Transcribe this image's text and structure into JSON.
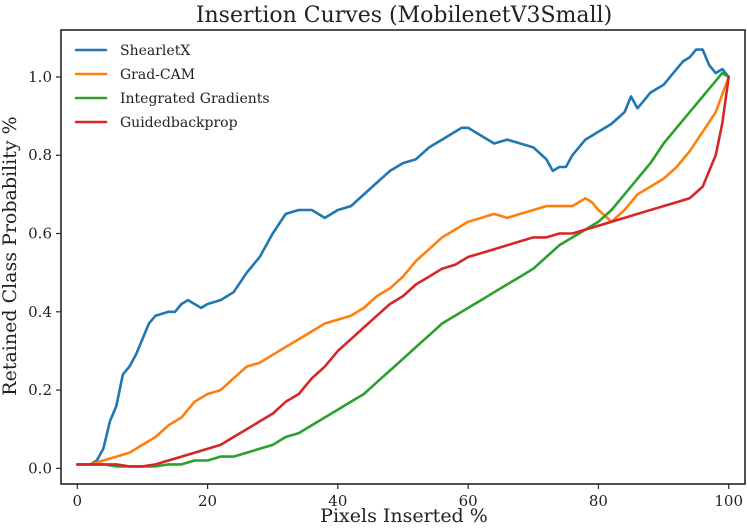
{
  "chart_data": {
    "type": "line",
    "title": "Insertion Curves (MobilenetV3Small)",
    "xlabel": "Pixels Inserted %",
    "ylabel": "Retained Class Probability %",
    "xlim": [
      -2.5,
      102.5
    ],
    "ylim": [
      -0.04,
      1.12
    ],
    "x_ticks": [
      0,
      20,
      40,
      60,
      80,
      100
    ],
    "x_tick_labels": [
      "0",
      "20",
      "40",
      "60",
      "80",
      "100"
    ],
    "y_ticks": [
      0.0,
      0.2,
      0.4,
      0.6,
      0.8,
      1.0
    ],
    "y_tick_labels": [
      "0.0",
      "0.2",
      "0.4",
      "0.6",
      "0.8",
      "1.0"
    ],
    "grid": false,
    "legend_position": "top-left",
    "series": [
      {
        "name": "ShearletX",
        "color": "#1f77b4",
        "x": [
          0,
          2,
          3,
          4,
          5,
          6,
          7,
          8,
          9,
          10,
          11,
          12,
          14,
          15,
          16,
          17,
          18,
          19,
          20,
          22,
          24,
          26,
          28,
          30,
          32,
          34,
          36,
          38,
          40,
          42,
          44,
          46,
          48,
          50,
          52,
          54,
          56,
          58,
          59,
          60,
          62,
          64,
          66,
          68,
          70,
          72,
          73,
          74,
          75,
          76,
          78,
          80,
          82,
          84,
          85,
          86,
          87,
          88,
          90,
          92,
          93,
          94,
          95,
          96,
          97,
          98,
          99,
          100
        ],
        "y": [
          0.01,
          0.01,
          0.02,
          0.05,
          0.12,
          0.16,
          0.24,
          0.26,
          0.29,
          0.33,
          0.37,
          0.39,
          0.4,
          0.4,
          0.42,
          0.43,
          0.42,
          0.41,
          0.42,
          0.43,
          0.45,
          0.5,
          0.54,
          0.6,
          0.65,
          0.66,
          0.66,
          0.64,
          0.66,
          0.67,
          0.7,
          0.73,
          0.76,
          0.78,
          0.79,
          0.82,
          0.84,
          0.86,
          0.87,
          0.87,
          0.85,
          0.83,
          0.84,
          0.83,
          0.82,
          0.79,
          0.76,
          0.77,
          0.77,
          0.8,
          0.84,
          0.86,
          0.88,
          0.91,
          0.95,
          0.92,
          0.94,
          0.96,
          0.98,
          1.02,
          1.04,
          1.05,
          1.07,
          1.07,
          1.03,
          1.01,
          1.02,
          1.0
        ]
      },
      {
        "name": "Grad-CAM",
        "color": "#ff7f0e",
        "x": [
          0,
          2,
          4,
          6,
          8,
          10,
          12,
          14,
          16,
          18,
          20,
          22,
          24,
          26,
          28,
          30,
          32,
          34,
          36,
          38,
          40,
          42,
          44,
          46,
          48,
          50,
          52,
          54,
          56,
          58,
          60,
          62,
          64,
          66,
          68,
          70,
          72,
          74,
          76,
          78,
          79,
          80,
          82,
          84,
          86,
          88,
          90,
          92,
          94,
          96,
          98,
          100
        ],
        "y": [
          0.01,
          0.01,
          0.02,
          0.03,
          0.04,
          0.06,
          0.08,
          0.11,
          0.13,
          0.17,
          0.19,
          0.2,
          0.23,
          0.26,
          0.27,
          0.29,
          0.31,
          0.33,
          0.35,
          0.37,
          0.38,
          0.39,
          0.41,
          0.44,
          0.46,
          0.49,
          0.53,
          0.56,
          0.59,
          0.61,
          0.63,
          0.64,
          0.65,
          0.64,
          0.65,
          0.66,
          0.67,
          0.67,
          0.67,
          0.69,
          0.68,
          0.66,
          0.63,
          0.66,
          0.7,
          0.72,
          0.74,
          0.77,
          0.81,
          0.86,
          0.91,
          1.0
        ]
      },
      {
        "name": "Integrated Gradients",
        "color": "#2ca02c",
        "x": [
          0,
          2,
          4,
          6,
          8,
          10,
          12,
          14,
          16,
          18,
          20,
          22,
          24,
          26,
          28,
          30,
          32,
          34,
          36,
          38,
          40,
          42,
          44,
          46,
          48,
          50,
          52,
          54,
          56,
          58,
          60,
          62,
          64,
          66,
          68,
          70,
          72,
          74,
          76,
          78,
          80,
          82,
          84,
          86,
          88,
          90,
          92,
          94,
          96,
          98,
          99,
          100
        ],
        "y": [
          0.01,
          0.01,
          0.01,
          0.005,
          0.005,
          0.005,
          0.005,
          0.01,
          0.01,
          0.02,
          0.02,
          0.03,
          0.03,
          0.04,
          0.05,
          0.06,
          0.08,
          0.09,
          0.11,
          0.13,
          0.15,
          0.17,
          0.19,
          0.22,
          0.25,
          0.28,
          0.31,
          0.34,
          0.37,
          0.39,
          0.41,
          0.43,
          0.45,
          0.47,
          0.49,
          0.51,
          0.54,
          0.57,
          0.59,
          0.61,
          0.63,
          0.66,
          0.7,
          0.74,
          0.78,
          0.83,
          0.87,
          0.91,
          0.95,
          0.99,
          1.01,
          1.0
        ]
      },
      {
        "name": "Guidedbackprop",
        "color": "#d62728",
        "x": [
          0,
          2,
          4,
          6,
          8,
          10,
          12,
          14,
          16,
          18,
          20,
          22,
          24,
          26,
          28,
          30,
          32,
          34,
          36,
          38,
          40,
          42,
          44,
          46,
          48,
          50,
          52,
          54,
          56,
          58,
          60,
          62,
          64,
          66,
          68,
          70,
          72,
          74,
          76,
          78,
          80,
          82,
          84,
          86,
          88,
          90,
          92,
          94,
          96,
          97,
          98,
          99,
          100
        ],
        "y": [
          0.01,
          0.01,
          0.01,
          0.01,
          0.005,
          0.005,
          0.01,
          0.02,
          0.03,
          0.04,
          0.05,
          0.06,
          0.08,
          0.1,
          0.12,
          0.14,
          0.17,
          0.19,
          0.23,
          0.26,
          0.3,
          0.33,
          0.36,
          0.39,
          0.42,
          0.44,
          0.47,
          0.49,
          0.51,
          0.52,
          0.54,
          0.55,
          0.56,
          0.57,
          0.58,
          0.59,
          0.59,
          0.6,
          0.6,
          0.61,
          0.62,
          0.63,
          0.64,
          0.65,
          0.66,
          0.67,
          0.68,
          0.69,
          0.72,
          0.76,
          0.8,
          0.88,
          1.0
        ]
      }
    ]
  }
}
